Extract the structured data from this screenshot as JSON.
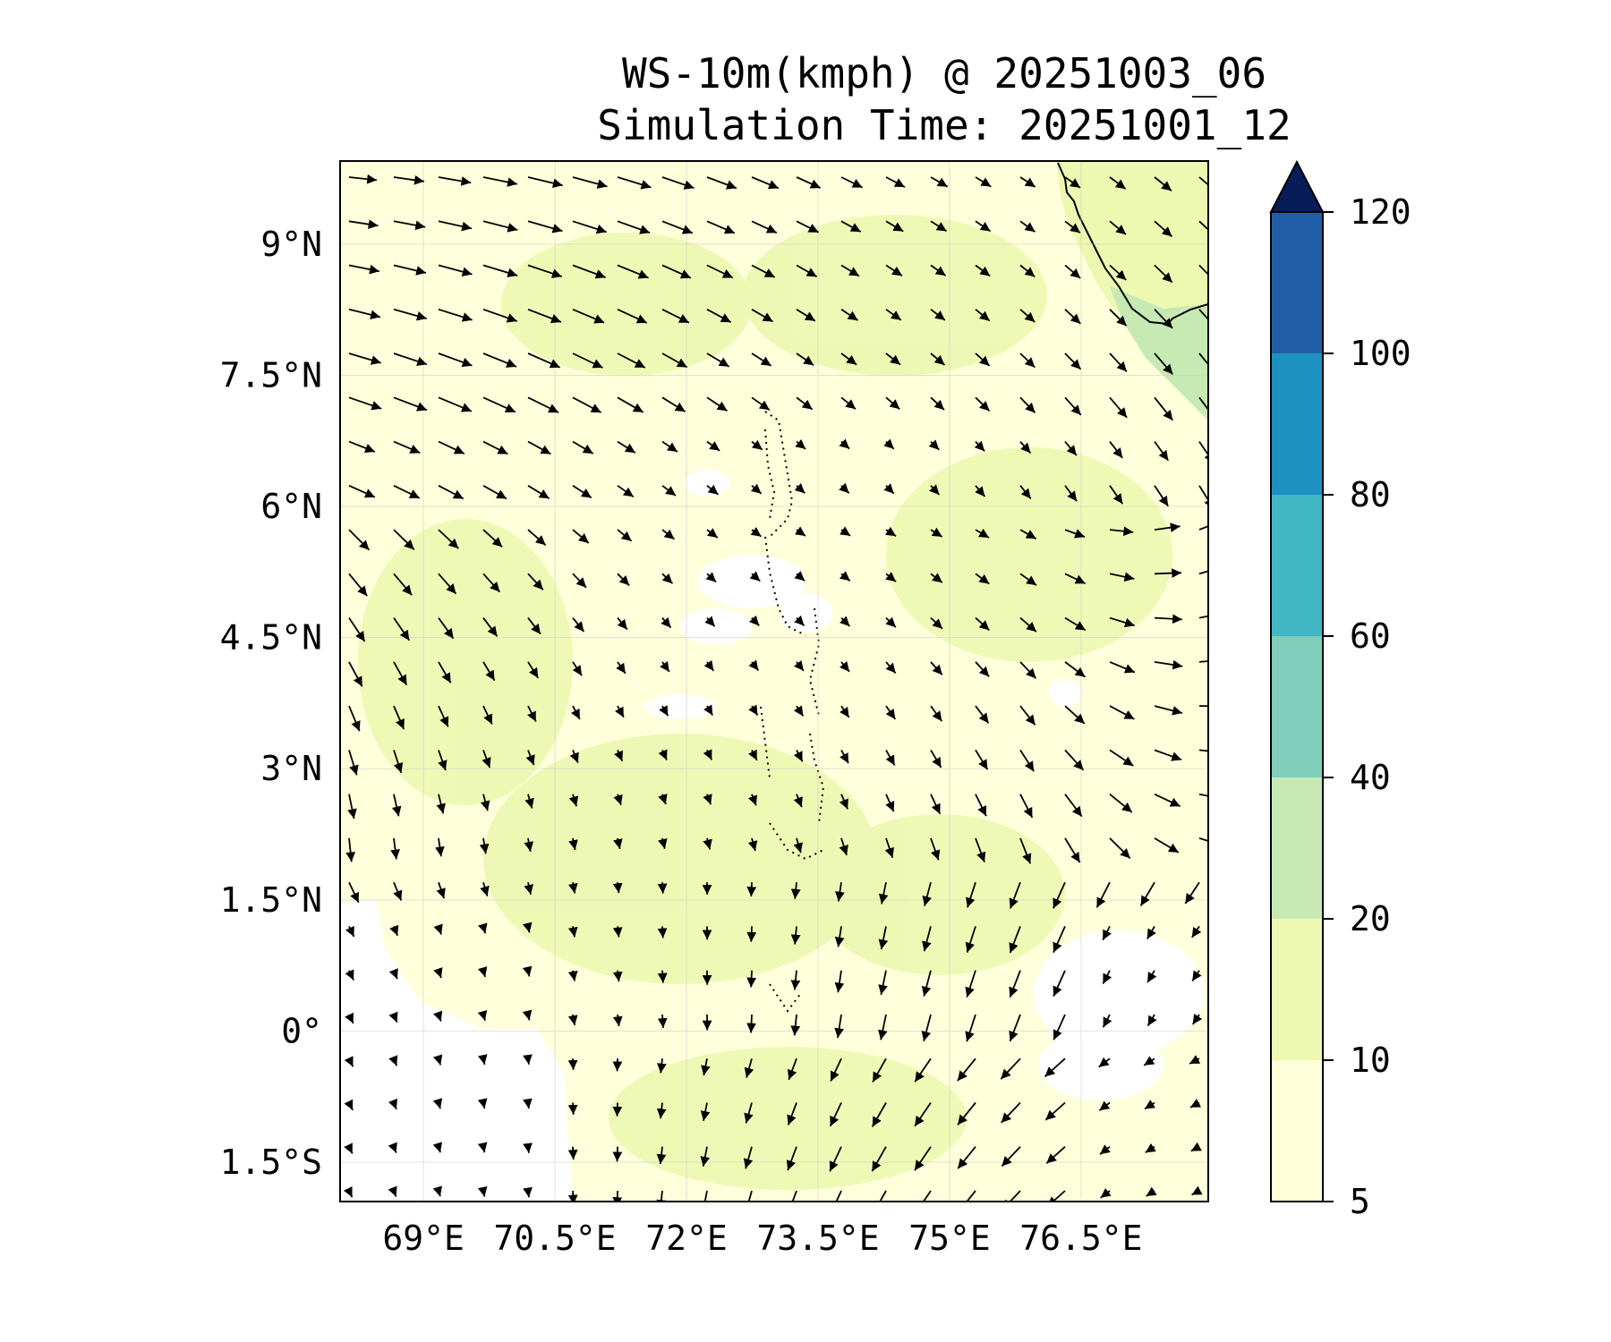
{
  "title": {
    "line1": "WS-10m(kmph) @ 20251003_06",
    "line2": "Simulation Time: 20251001_12"
  },
  "map": {
    "lat_ticks": [
      "9°N",
      "7.5°N",
      "6°N",
      "4.5°N",
      "3°N",
      "1.5°N",
      "0°",
      "1.5°S"
    ],
    "lon_ticks": [
      "69°E",
      "70.5°E",
      "72°E",
      "73.5°E",
      "75°E",
      "76.5°E"
    ],
    "lat_values": [
      9,
      7.5,
      6,
      4.5,
      3,
      1.5,
      0,
      -1.5
    ],
    "lon_values": [
      69,
      70.5,
      72,
      73.5,
      75,
      76.5
    ],
    "extent": {
      "lon_min": 68.05,
      "lon_max": 77.95,
      "lat_min": -1.95,
      "lat_max": 9.95
    },
    "background_color": "#ffffdb",
    "wind_field": "southwest-to-northeast turning winds; westerly/northwesterly in the north, northerly near equator, northeasterly in the southeast"
  },
  "colorbar": {
    "levels": [
      "5",
      "10",
      "20",
      "40",
      "60",
      "80",
      "100",
      "120"
    ],
    "colors": [
      "#ffffd9",
      "#edf8b1",
      "#c7e9b4",
      "#7fcdbb",
      "#41b6c4",
      "#1d91c0",
      "#225ea8",
      "#0c2c84"
    ],
    "extend_color": "#081d58"
  }
}
